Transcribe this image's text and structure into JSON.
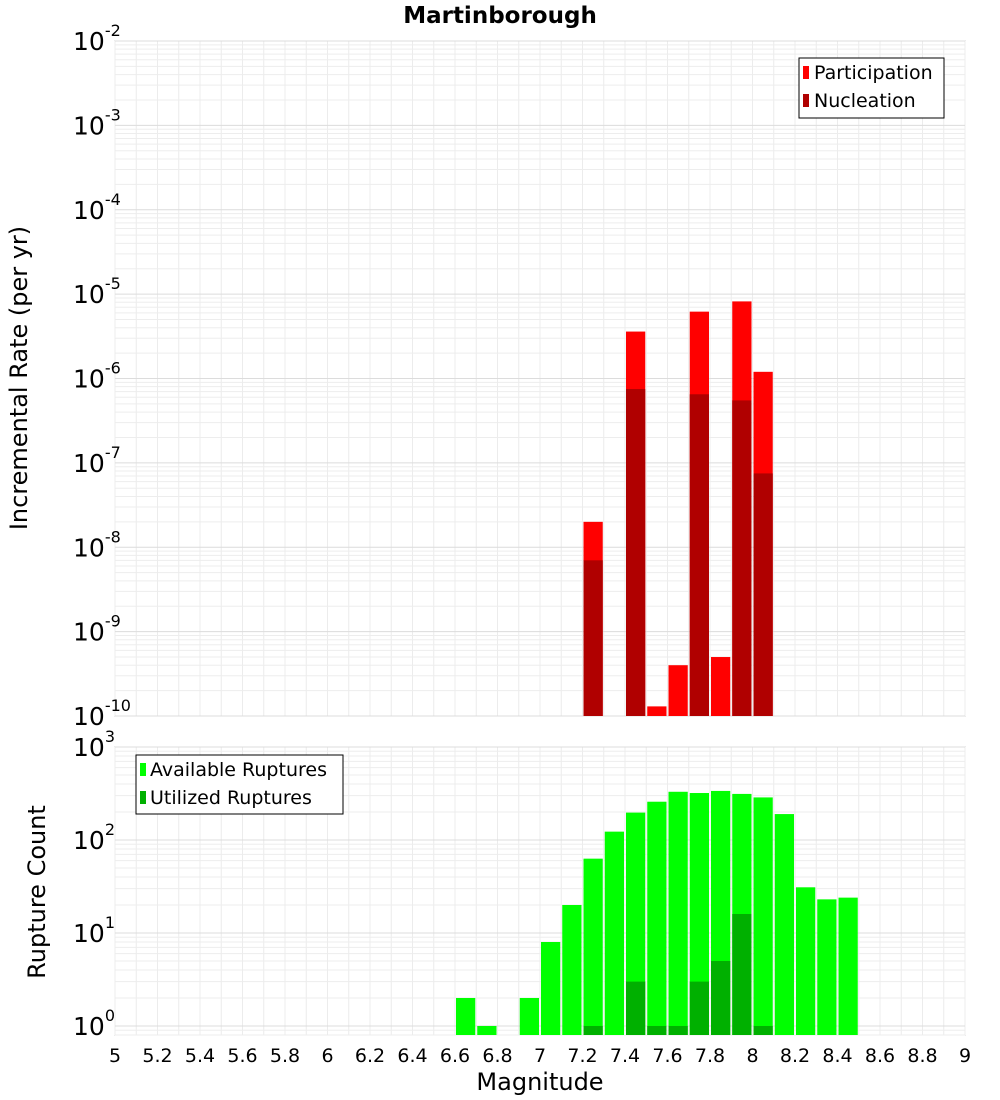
{
  "chart_data": [
    {
      "type": "bar",
      "panel": "top",
      "title": "Martinborough",
      "xlabel": "",
      "ylabel": "Incremental Rate (per yr)",
      "xlim": [
        5,
        9
      ],
      "ylim": [
        1e-10,
        0.01
      ],
      "yscale": "log",
      "y_decades": [
        -10,
        -9,
        -8,
        -7,
        -6,
        -5,
        -4,
        -3,
        -2
      ],
      "grid": true,
      "legend_position": "top-right",
      "bar_width": 0.1,
      "series": [
        {
          "name": "Participation",
          "color": "#ff0000",
          "points": [
            {
              "x": 7.25,
              "y": 2e-08
            },
            {
              "x": 7.45,
              "y": 3.6e-06
            },
            {
              "x": 7.55,
              "y": 1.3e-10
            },
            {
              "x": 7.65,
              "y": 4e-10
            },
            {
              "x": 7.75,
              "y": 6.2e-06
            },
            {
              "x": 7.85,
              "y": 5e-10
            },
            {
              "x": 7.95,
              "y": 8.2e-06
            },
            {
              "x": 8.05,
              "y": 1.2e-06
            }
          ]
        },
        {
          "name": "Nucleation",
          "color": "#b00000",
          "points": [
            {
              "x": 7.25,
              "y": 7e-09
            },
            {
              "x": 7.45,
              "y": 7.5e-07
            },
            {
              "x": 7.75,
              "y": 6.5e-07
            },
            {
              "x": 7.95,
              "y": 5.5e-07
            },
            {
              "x": 8.05,
              "y": 7.5e-08
            }
          ]
        }
      ]
    },
    {
      "type": "bar",
      "panel": "bottom",
      "title": "",
      "xlabel": "Magnitude",
      "ylabel": "Rupture Count",
      "xlim": [
        5,
        9
      ],
      "x_ticks": [
        "5",
        "5.2",
        "5.4",
        "5.6",
        "5.8",
        "6",
        "6.2",
        "6.4",
        "6.6",
        "6.8",
        "7",
        "7.2",
        "7.4",
        "7.6",
        "7.8",
        "8",
        "8.2",
        "8.4",
        "8.6",
        "8.8",
        "9"
      ],
      "ylim": [
        0.8,
        1000
      ],
      "yscale": "log",
      "y_decades": [
        0,
        1,
        2,
        3
      ],
      "grid": true,
      "legend_position": "top-left",
      "bar_width": 0.1,
      "series": [
        {
          "name": "Available Ruptures",
          "color": "#00ff00",
          "points": [
            {
              "x": 6.65,
              "y": 2
            },
            {
              "x": 6.75,
              "y": 1
            },
            {
              "x": 6.95,
              "y": 2
            },
            {
              "x": 7.05,
              "y": 8
            },
            {
              "x": 7.15,
              "y": 20
            },
            {
              "x": 7.25,
              "y": 63
            },
            {
              "x": 7.35,
              "y": 123
            },
            {
              "x": 7.45,
              "y": 197
            },
            {
              "x": 7.55,
              "y": 258
            },
            {
              "x": 7.65,
              "y": 330
            },
            {
              "x": 7.75,
              "y": 320
            },
            {
              "x": 7.85,
              "y": 337
            },
            {
              "x": 7.95,
              "y": 313
            },
            {
              "x": 8.05,
              "y": 287
            },
            {
              "x": 8.15,
              "y": 190
            },
            {
              "x": 8.25,
              "y": 31
            },
            {
              "x": 8.35,
              "y": 23
            },
            {
              "x": 8.45,
              "y": 24
            }
          ]
        },
        {
          "name": "Utilized Ruptures",
          "color": "#00b000",
          "points": [
            {
              "x": 7.25,
              "y": 1
            },
            {
              "x": 7.45,
              "y": 3
            },
            {
              "x": 7.55,
              "y": 1
            },
            {
              "x": 7.65,
              "y": 1
            },
            {
              "x": 7.75,
              "y": 3
            },
            {
              "x": 7.85,
              "y": 5
            },
            {
              "x": 7.95,
              "y": 16
            },
            {
              "x": 8.05,
              "y": 1
            }
          ]
        }
      ]
    }
  ]
}
